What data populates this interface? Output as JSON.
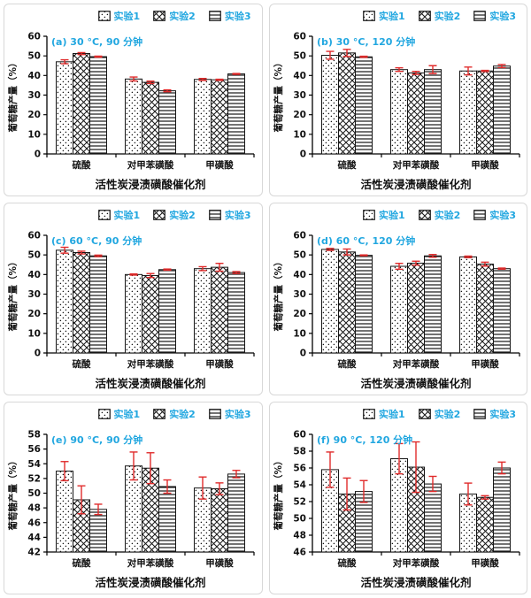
{
  "colors": {
    "accent": "#22a7e0",
    "error_bar": "#e02b2b",
    "axis": "#000000",
    "bar_fill": "#ffffff",
    "panel_border": "#d8d8d8"
  },
  "legend": {
    "items": [
      {
        "label": "实验1",
        "pattern": "dots"
      },
      {
        "label": "实验2",
        "pattern": "crosshatch"
      },
      {
        "label": "实验3",
        "pattern": "hlines"
      }
    ]
  },
  "chart_data": [
    {
      "id": "a",
      "type": "bar",
      "annotation": "(a) 30 °C, 90 分钟",
      "xlabel": "活性炭浸渍磺酸催化剂",
      "ylabel": "葡萄糖产量（%）",
      "ylim": [
        0,
        60
      ],
      "ytick_step": 10,
      "grid": false,
      "legend_position": "top-right",
      "categories": [
        "硫酸",
        "对甲苯磺酸",
        "甲磺酸"
      ],
      "series": [
        {
          "name": "实验1",
          "values": [
            47.0,
            38.2,
            38.0
          ],
          "errors": [
            1.0,
            1.0,
            0.5
          ]
        },
        {
          "name": "实验2",
          "values": [
            51.2,
            36.5,
            37.8
          ],
          "errors": [
            0.5,
            0.6,
            0.3
          ]
        },
        {
          "name": "实验3",
          "values": [
            49.6,
            32.2,
            40.8
          ],
          "errors": [
            0.3,
            0.5,
            0.2
          ]
        }
      ]
    },
    {
      "id": "b",
      "type": "bar",
      "annotation": "(b) 30 °C, 120 分钟",
      "xlabel": "活性炭浸渍磺酸催化剂",
      "ylabel": "葡萄糖产量（%）",
      "ylim": [
        0,
        60
      ],
      "ytick_step": 10,
      "grid": false,
      "legend_position": "top-right",
      "categories": [
        "硫酸",
        "对甲苯磺酸",
        "甲磺酸"
      ],
      "series": [
        {
          "name": "实验1",
          "values": [
            50.3,
            43.0,
            42.3
          ],
          "errors": [
            2.0,
            0.9,
            2.0
          ]
        },
        {
          "name": "实验2",
          "values": [
            51.5,
            41.3,
            42.3
          ],
          "errors": [
            1.8,
            0.8,
            0.3
          ]
        },
        {
          "name": "实验3",
          "values": [
            49.5,
            43.0,
            44.8
          ],
          "errors": [
            0.3,
            2.0,
            0.8
          ]
        }
      ]
    },
    {
      "id": "c",
      "type": "bar",
      "annotation": "(c) 60 °C, 90 分钟",
      "xlabel": "活性炭浸渍磺酸催化剂",
      "ylabel": "葡萄糖产量（%）",
      "ylim": [
        0,
        60
      ],
      "ytick_step": 10,
      "grid": false,
      "legend_position": "top-right",
      "categories": [
        "硫酸",
        "对甲苯磺酸",
        "甲磺酸"
      ],
      "series": [
        {
          "name": "实验1",
          "values": [
            52.4,
            40.0,
            43.0
          ],
          "errors": [
            1.5,
            0.3,
            1.0
          ]
        },
        {
          "name": "实验2",
          "values": [
            51.2,
            39.5,
            43.7
          ],
          "errors": [
            0.7,
            1.0,
            2.0
          ]
        },
        {
          "name": "实验3",
          "values": [
            49.5,
            42.5,
            41.0
          ],
          "errors": [
            0.4,
            0.3,
            0.5
          ]
        }
      ]
    },
    {
      "id": "d",
      "type": "bar",
      "annotation": "(d) 60 °C, 120 分钟",
      "xlabel": "活性炭浸渍磺酸催化剂",
      "ylabel": "葡萄糖产量（%）",
      "ylim": [
        0,
        60
      ],
      "ytick_step": 10,
      "grid": false,
      "legend_position": "top-right",
      "categories": [
        "硫酸",
        "对甲苯磺酸",
        "甲磺酸"
      ],
      "series": [
        {
          "name": "实验1",
          "values": [
            52.8,
            44.2,
            49.0
          ],
          "errors": [
            0.5,
            1.5,
            0.4
          ]
        },
        {
          "name": "实验2",
          "values": [
            51.5,
            45.8,
            45.3
          ],
          "errors": [
            1.5,
            1.0,
            1.0
          ]
        },
        {
          "name": "实验3",
          "values": [
            49.8,
            49.5,
            43.0
          ],
          "errors": [
            0.2,
            0.7,
            0.3
          ]
        }
      ]
    },
    {
      "id": "e",
      "type": "bar",
      "annotation": "(e) 90 °C, 90 分钟",
      "xlabel": "活性炭浸渍磺酸催化剂",
      "ylabel": "葡萄糖产量（%）",
      "ylim": [
        42,
        58
      ],
      "ytick_step": 2,
      "grid": false,
      "legend_position": "top-right",
      "categories": [
        "硫酸",
        "对甲苯磺酸",
        "甲磺酸"
      ],
      "series": [
        {
          "name": "实验1",
          "values": [
            53.0,
            53.7,
            50.7
          ],
          "errors": [
            1.3,
            1.9,
            1.5
          ]
        },
        {
          "name": "实验2",
          "values": [
            49.1,
            53.4,
            50.6
          ],
          "errors": [
            1.9,
            2.1,
            0.8
          ]
        },
        {
          "name": "实验3",
          "values": [
            47.8,
            50.9,
            52.6
          ],
          "errors": [
            0.7,
            0.9,
            0.5
          ]
        }
      ]
    },
    {
      "id": "f",
      "type": "bar",
      "annotation": "(f) 90 °C, 120 分钟",
      "xlabel": "活性炭浸渍磺酸催化剂",
      "ylabel": "葡萄糖产量（%）",
      "ylim": [
        46,
        60
      ],
      "ytick_step": 2,
      "grid": false,
      "legend_position": "top-right",
      "categories": [
        "硫酸",
        "对甲苯磺酸",
        "甲磺酸"
      ],
      "series": [
        {
          "name": "实验1",
          "values": [
            55.8,
            57.1,
            52.9
          ],
          "errors": [
            2.1,
            1.8,
            1.3
          ]
        },
        {
          "name": "实验2",
          "values": [
            52.9,
            56.1,
            52.5
          ],
          "errors": [
            1.9,
            3.0,
            0.2
          ]
        },
        {
          "name": "实验3",
          "values": [
            53.2,
            54.1,
            56.0
          ],
          "errors": [
            1.3,
            0.9,
            0.7
          ]
        }
      ]
    }
  ]
}
